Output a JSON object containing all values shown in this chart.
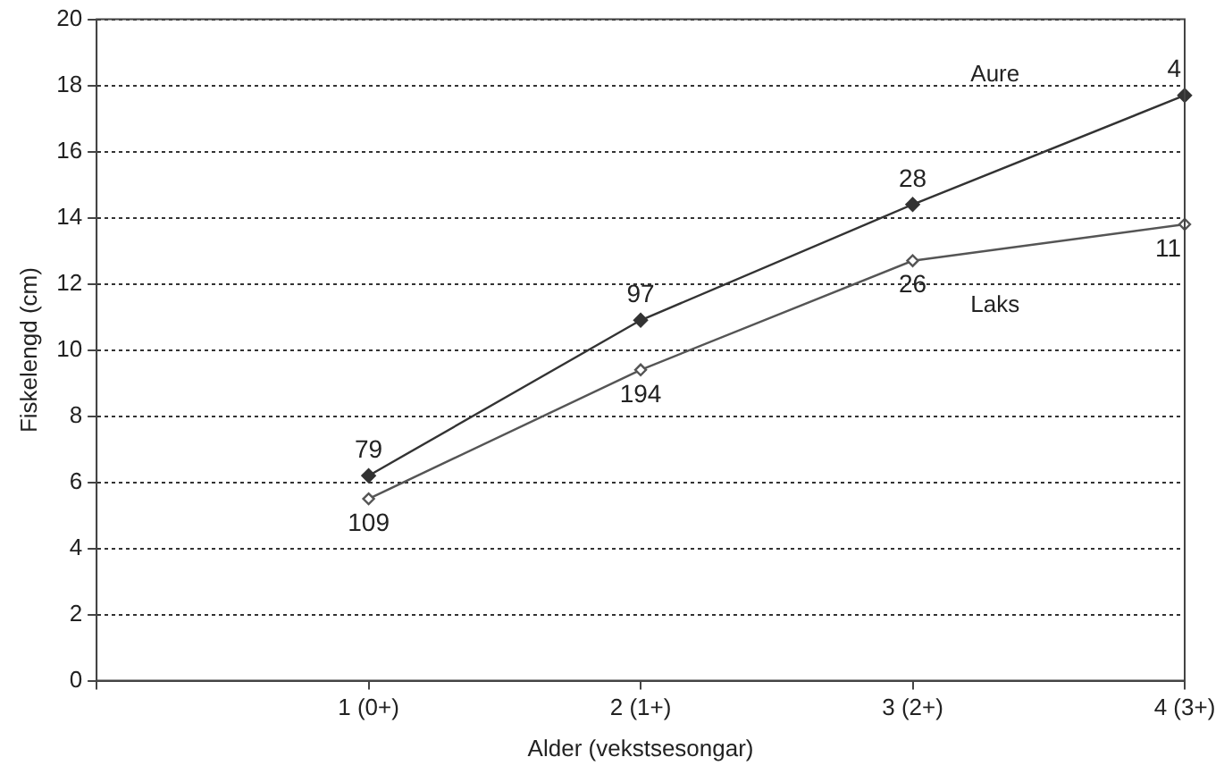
{
  "chart_data": {
    "type": "line",
    "xlabel": "Alder (vekstsesongar)",
    "ylabel": "Fiskelengd (cm)",
    "categories": [
      null,
      "1 (0+)",
      "2 (1+)",
      "3 (2+)",
      "4 (3+)"
    ],
    "ylim": [
      0,
      20
    ],
    "yticks": [
      0,
      2,
      4,
      6,
      8,
      10,
      12,
      14,
      16,
      18,
      20
    ],
    "grid": "y",
    "marker": "diamond",
    "line_style": "solid",
    "legend": false,
    "series": [
      {
        "name": "Aure",
        "color": "#333333",
        "values": [
          null,
          6.2,
          10.9,
          14.4,
          17.7
        ]
      },
      {
        "name": "Laks",
        "color": "#555555",
        "values": [
          null,
          5.5,
          9.4,
          12.7,
          13.8
        ]
      }
    ],
    "annotations": [
      {
        "text": "79",
        "x": "1 (0+)",
        "y": 6.2
      },
      {
        "text": "109",
        "x": "1 (0+)",
        "y": 5.5
      },
      {
        "text": "97",
        "x": "2 (1+)",
        "y": 10.9
      },
      {
        "text": "194",
        "x": "2 (1+)",
        "y": 9.4
      },
      {
        "text": "28",
        "x": "3 (2+)",
        "y": 14.4
      },
      {
        "text": "26",
        "x": "3 (2+)",
        "y": 12.7
      },
      {
        "text": "4",
        "x": "4 (3+)",
        "y": 17.7
      },
      {
        "text": "11",
        "x": "4 (3+)",
        "y": 13.8
      }
    ]
  }
}
